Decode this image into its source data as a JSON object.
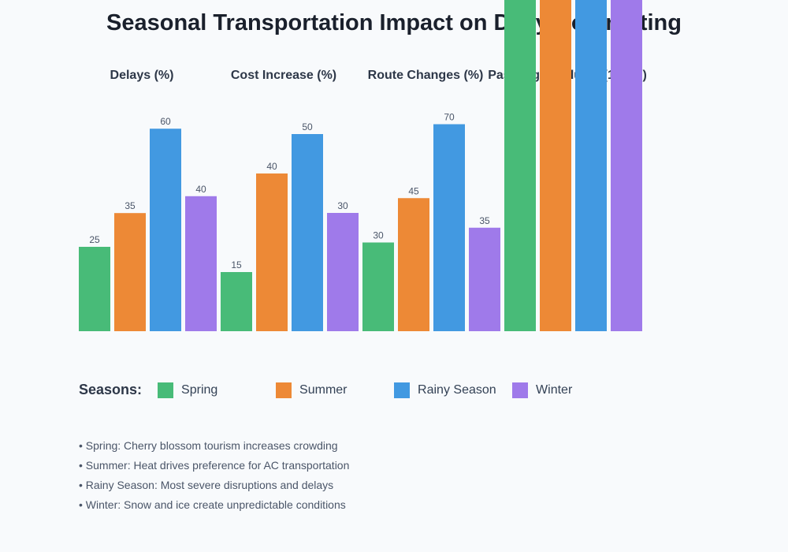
{
  "chart_data": {
    "type": "bar",
    "title": "Seasonal Transportation Impact on Daily Commuting",
    "categories": [
      "Delays (%)",
      "Cost Increase (%)",
      "Route Changes (%)",
      "Passenger Volume (1000s)"
    ],
    "series": [
      {
        "name": "Spring",
        "color": "#48bb78",
        "values": [
          25,
          15,
          30,
          null
        ]
      },
      {
        "name": "Summer",
        "color": "#ed8936",
        "values": [
          35,
          40,
          45,
          null
        ]
      },
      {
        "name": "Rainy Season",
        "color": "#4299e1",
        "values": [
          60,
          50,
          70,
          null
        ]
      },
      {
        "name": "Winter",
        "color": "#9f7aea",
        "values": [
          40,
          30,
          35,
          null
        ]
      }
    ],
    "legend_title": "Seasons:",
    "legend_placement": "bottom",
    "grid": false
  },
  "notes": [
    "• Spring: Cherry blossom tourism increases crowding",
    "• Summer: Heat drives preference for AC transportation",
    "• Rainy Season: Most severe disruptions and delays",
    "• Winter: Snow and ice create unpredictable conditions"
  ]
}
